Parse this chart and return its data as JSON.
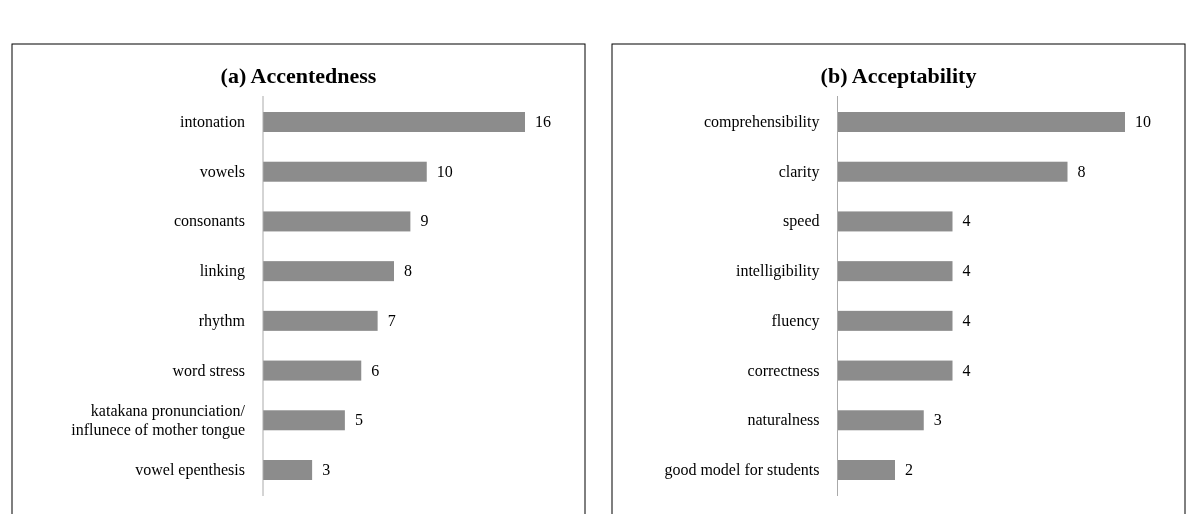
{
  "chart_data": [
    {
      "type": "bar",
      "orientation": "horizontal",
      "title": "(a) Accentedness",
      "categories": [
        "intonation",
        "vowels",
        "consonants",
        "linking",
        "rhythm",
        "word stress",
        "katakana pronunciation/ influnece of mother tongue",
        "vowel epenthesis"
      ],
      "values": [
        16,
        10,
        9,
        8,
        7,
        6,
        5,
        3
      ],
      "color": "#8c8c8c",
      "data_labels": true
    },
    {
      "type": "bar",
      "orientation": "horizontal",
      "title": "(b) Acceptability",
      "categories": [
        "comprehensibility",
        "clarity",
        "speed",
        "intelligibility",
        "fluency",
        "correctness",
        "naturalness",
        "good model for students"
      ],
      "values": [
        10,
        8,
        4,
        4,
        4,
        4,
        3,
        2
      ],
      "color": "#8c8c8c",
      "data_labels": true
    }
  ]
}
